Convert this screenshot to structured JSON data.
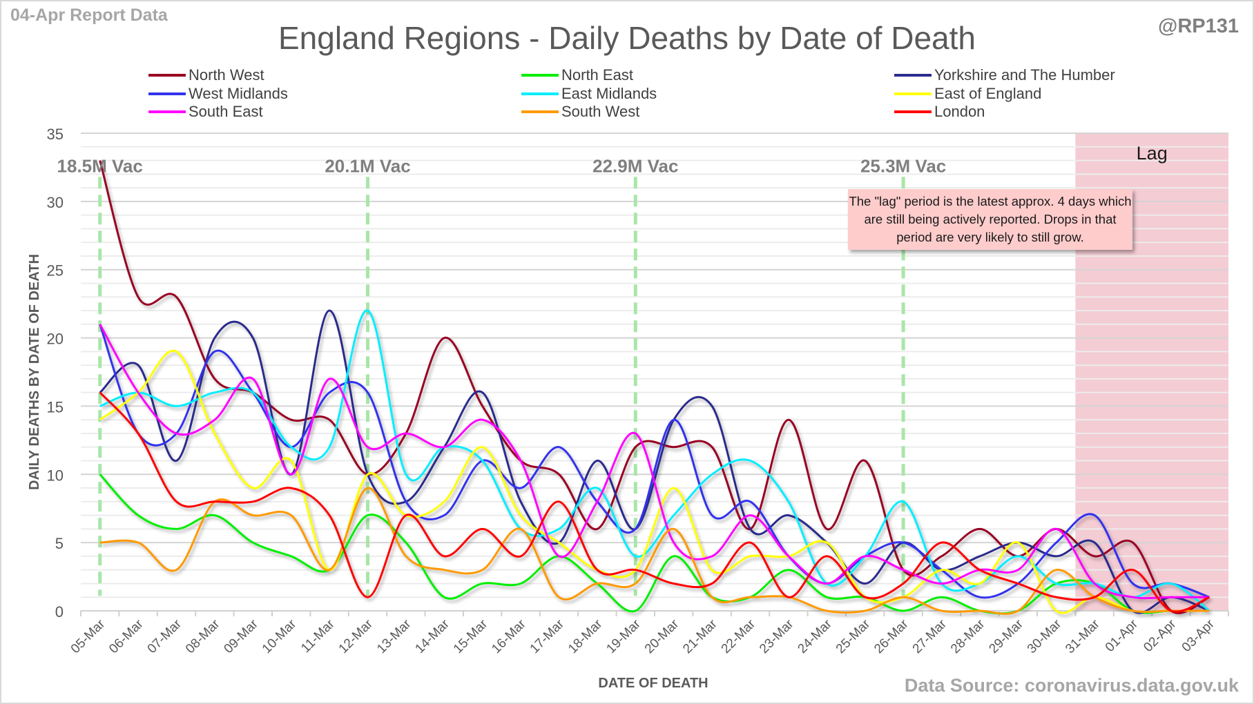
{
  "header": {
    "report_label": "04-Apr Report Data",
    "handle": "@RP131",
    "source": "Data Source: coronavirus.data.gov.uk"
  },
  "note": "The \"lag\" period is the latest approx. 4 days which are still being actively reported. Drops in that period are very likely to still grow.",
  "chart_data": {
    "type": "line",
    "title": "England Regions - Daily Deaths by Date of Death",
    "xlabel": "DATE OF DEATH",
    "ylabel": "DAILY DEATHS BY DATE OF DEATH",
    "ylim": [
      0,
      35
    ],
    "yticks": [
      0,
      5,
      10,
      15,
      20,
      25,
      30,
      35
    ],
    "grid": true,
    "smoothed": true,
    "legend_position": "top",
    "categories": [
      "05-Mar",
      "06-Mar",
      "07-Mar",
      "08-Mar",
      "09-Mar",
      "10-Mar",
      "11-Mar",
      "12-Mar",
      "13-Mar",
      "14-Mar",
      "15-Mar",
      "16-Mar",
      "17-Mar",
      "18-Mar",
      "19-Mar",
      "20-Mar",
      "21-Mar",
      "22-Mar",
      "23-Mar",
      "24-Mar",
      "25-Mar",
      "26-Mar",
      "27-Mar",
      "28-Mar",
      "29-Mar",
      "30-Mar",
      "31-Mar",
      "01-Apr",
      "02-Apr",
      "03-Apr"
    ],
    "series": [
      {
        "name": "North West",
        "color": "#990022",
        "values": [
          33,
          23,
          23,
          17,
          16,
          14,
          14,
          10,
          13,
          20,
          15,
          11,
          10,
          6,
          12,
          12,
          12,
          6,
          14,
          6,
          11,
          3,
          4,
          6,
          4,
          6,
          4,
          5,
          0,
          1
        ]
      },
      {
        "name": "North East",
        "color": "#00ee00",
        "values": [
          10,
          7,
          6,
          7,
          5,
          4,
          3,
          7,
          5,
          1,
          2,
          2,
          4,
          2,
          0,
          4,
          1,
          1,
          3,
          1,
          1,
          0,
          1,
          0,
          0,
          2,
          2,
          0,
          0,
          0
        ]
      },
      {
        "name": "Yorkshire and The Humber",
        "color": "#2b2b8c",
        "values": [
          16,
          18,
          11,
          20,
          20,
          10,
          22,
          10,
          8,
          12,
          16,
          8,
          5,
          11,
          6,
          14,
          15,
          6,
          7,
          5,
          2,
          5,
          3,
          4,
          5,
          4,
          5,
          0,
          1,
          0
        ]
      },
      {
        "name": "West Midlands",
        "color": "#3333ee",
        "values": [
          21,
          13,
          13,
          19,
          16,
          12,
          16,
          16,
          8,
          7,
          11,
          9,
          12,
          8,
          6,
          14,
          7,
          8,
          4,
          2,
          4,
          5,
          3,
          1,
          2,
          5,
          7,
          2,
          2,
          1
        ]
      },
      {
        "name": "East Midlands",
        "color": "#00eeff",
        "values": [
          15,
          16,
          15,
          16,
          16,
          12,
          12,
          22,
          10,
          12,
          11,
          6,
          6,
          9,
          4,
          7,
          10,
          11,
          8,
          2,
          4,
          8,
          2,
          2,
          4,
          2,
          2,
          1,
          2,
          0
        ]
      },
      {
        "name": "East of England",
        "color": "#ffff00",
        "values": [
          14,
          16,
          19,
          13,
          9,
          11,
          3,
          10,
          7,
          8,
          12,
          7,
          5,
          3,
          3,
          9,
          3,
          4,
          4,
          5,
          1,
          1,
          3,
          2,
          5,
          0,
          1,
          0,
          0,
          0
        ]
      },
      {
        "name": "South East",
        "color": "#ff00ff",
        "values": [
          21,
          16,
          13,
          14,
          17,
          10,
          17,
          12,
          13,
          12,
          14,
          11,
          4,
          8,
          13,
          5,
          4,
          7,
          4,
          2,
          4,
          3,
          2,
          3,
          3,
          6,
          2,
          1,
          1,
          1
        ]
      },
      {
        "name": "South West",
        "color": "#ff9900",
        "values": [
          5,
          5,
          3,
          8,
          7,
          7,
          3,
          9,
          4,
          3,
          3,
          6,
          1,
          2,
          2,
          6,
          1,
          1,
          1,
          0,
          0,
          1,
          0,
          0,
          0,
          3,
          1,
          0,
          0,
          0
        ]
      },
      {
        "name": "London",
        "color": "#ff0000",
        "values": [
          16,
          13,
          8,
          8,
          8,
          9,
          7,
          1,
          7,
          4,
          6,
          4,
          8,
          3,
          3,
          2,
          2,
          5,
          1,
          4,
          1,
          2,
          5,
          3,
          2,
          1,
          1,
          3,
          0,
          1
        ]
      }
    ],
    "annotations": {
      "vaccination_markers": [
        {
          "category": "05-Mar",
          "label": "18.5M Vac"
        },
        {
          "category": "12-Mar",
          "label": "20.1M Vac"
        },
        {
          "category": "19-Mar",
          "label": "22.9M Vac"
        },
        {
          "category": "26-Mar",
          "label": "25.3M Vac"
        }
      ],
      "lag_region": {
        "label": "Lag",
        "start": "31-Mar",
        "end": "03-Apr",
        "color": "#f4ccd4"
      },
      "vac_line_color": "#a8e6a8"
    }
  }
}
